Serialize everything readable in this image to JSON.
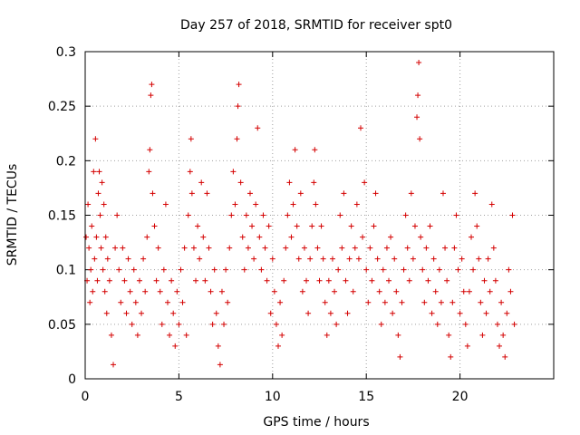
{
  "chart_data": {
    "type": "scatter",
    "title": "Day 257 of 2018, SRMTID for receiver spt0",
    "xlabel": "GPS time / hours",
    "ylabel": "SRMTID / TECUs",
    "xlim": [
      0,
      25
    ],
    "ylim": [
      0,
      0.3
    ],
    "x_ticks": [
      0,
      5,
      10,
      15,
      20
    ],
    "x_tick_labels": [
      "0",
      "5",
      "10",
      "15",
      "20"
    ],
    "y_ticks": [
      0,
      0.05,
      0.1,
      0.15,
      0.2,
      0.25,
      0.3
    ],
    "y_tick_labels": [
      "0",
      "0.05",
      "0.1",
      "0.15",
      "0.2",
      "0.25",
      "0.3"
    ],
    "grid": true,
    "marker": "plus",
    "color": "#d40000",
    "series": [
      {
        "name": "spt0",
        "points": [
          [
            0.05,
            0.13
          ],
          [
            0.1,
            0.09
          ],
          [
            0.15,
            0.16
          ],
          [
            0.2,
            0.12
          ],
          [
            0.25,
            0.07
          ],
          [
            0.3,
            0.1
          ],
          [
            0.35,
            0.14
          ],
          [
            0.4,
            0.08
          ],
          [
            0.45,
            0.19
          ],
          [
            0.5,
            0.11
          ],
          [
            0.55,
            0.22
          ],
          [
            0.6,
            0.13
          ],
          [
            0.65,
            0.09
          ],
          [
            0.7,
            0.17
          ],
          [
            0.75,
            0.19
          ],
          [
            0.8,
            0.15
          ],
          [
            0.85,
            0.12
          ],
          [
            0.9,
            0.18
          ],
          [
            0.95,
            0.1
          ],
          [
            1.0,
            0.16
          ],
          [
            1.05,
            0.08
          ],
          [
            1.1,
            0.13
          ],
          [
            1.15,
            0.06
          ],
          [
            1.2,
            0.11
          ],
          [
            1.3,
            0.09
          ],
          [
            1.4,
            0.04
          ],
          [
            1.5,
            0.013
          ],
          [
            1.6,
            0.12
          ],
          [
            1.7,
            0.15
          ],
          [
            1.8,
            0.1
          ],
          [
            1.9,
            0.07
          ],
          [
            2.0,
            0.12
          ],
          [
            2.1,
            0.09
          ],
          [
            2.2,
            0.06
          ],
          [
            2.3,
            0.11
          ],
          [
            2.4,
            0.08
          ],
          [
            2.5,
            0.05
          ],
          [
            2.6,
            0.1
          ],
          [
            2.7,
            0.07
          ],
          [
            2.8,
            0.04
          ],
          [
            2.9,
            0.09
          ],
          [
            3.0,
            0.06
          ],
          [
            3.1,
            0.11
          ],
          [
            3.2,
            0.08
          ],
          [
            3.3,
            0.13
          ],
          [
            3.4,
            0.19
          ],
          [
            3.45,
            0.21
          ],
          [
            3.5,
            0.26
          ],
          [
            3.55,
            0.27
          ],
          [
            3.6,
            0.17
          ],
          [
            3.7,
            0.14
          ],
          [
            3.8,
            0.09
          ],
          [
            3.9,
            0.12
          ],
          [
            4.0,
            0.08
          ],
          [
            4.1,
            0.05
          ],
          [
            4.2,
            0.1
          ],
          [
            4.3,
            0.16
          ],
          [
            4.4,
            0.07
          ],
          [
            4.5,
            0.04
          ],
          [
            4.6,
            0.09
          ],
          [
            4.7,
            0.06
          ],
          [
            4.8,
            0.03
          ],
          [
            4.9,
            0.08
          ],
          [
            5.0,
            0.05
          ],
          [
            5.1,
            0.1
          ],
          [
            5.2,
            0.07
          ],
          [
            5.3,
            0.12
          ],
          [
            5.4,
            0.04
          ],
          [
            5.5,
            0.15
          ],
          [
            5.6,
            0.19
          ],
          [
            5.65,
            0.22
          ],
          [
            5.7,
            0.17
          ],
          [
            5.8,
            0.12
          ],
          [
            5.9,
            0.09
          ],
          [
            6.0,
            0.14
          ],
          [
            6.1,
            0.11
          ],
          [
            6.2,
            0.18
          ],
          [
            6.3,
            0.13
          ],
          [
            6.4,
            0.09
          ],
          [
            6.5,
            0.17
          ],
          [
            6.6,
            0.12
          ],
          [
            6.7,
            0.08
          ],
          [
            6.8,
            0.05
          ],
          [
            6.9,
            0.1
          ],
          [
            7.0,
            0.06
          ],
          [
            7.1,
            0.03
          ],
          [
            7.2,
            0.013
          ],
          [
            7.3,
            0.08
          ],
          [
            7.4,
            0.05
          ],
          [
            7.5,
            0.1
          ],
          [
            7.6,
            0.07
          ],
          [
            7.7,
            0.12
          ],
          [
            7.8,
            0.15
          ],
          [
            7.9,
            0.19
          ],
          [
            8.0,
            0.16
          ],
          [
            8.1,
            0.22
          ],
          [
            8.15,
            0.25
          ],
          [
            8.2,
            0.27
          ],
          [
            8.3,
            0.18
          ],
          [
            8.4,
            0.13
          ],
          [
            8.5,
            0.1
          ],
          [
            8.6,
            0.15
          ],
          [
            8.7,
            0.12
          ],
          [
            8.8,
            0.17
          ],
          [
            8.9,
            0.14
          ],
          [
            9.0,
            0.11
          ],
          [
            9.1,
            0.16
          ],
          [
            9.2,
            0.23
          ],
          [
            9.3,
            0.13
          ],
          [
            9.4,
            0.1
          ],
          [
            9.5,
            0.15
          ],
          [
            9.6,
            0.12
          ],
          [
            9.7,
            0.09
          ],
          [
            9.8,
            0.14
          ],
          [
            9.9,
            0.06
          ],
          [
            10.0,
            0.11
          ],
          [
            10.1,
            0.08
          ],
          [
            10.2,
            0.05
          ],
          [
            10.3,
            0.03
          ],
          [
            10.4,
            0.07
          ],
          [
            10.5,
            0.04
          ],
          [
            10.6,
            0.09
          ],
          [
            10.7,
            0.12
          ],
          [
            10.8,
            0.15
          ],
          [
            10.9,
            0.18
          ],
          [
            11.0,
            0.13
          ],
          [
            11.1,
            0.16
          ],
          [
            11.2,
            0.21
          ],
          [
            11.3,
            0.14
          ],
          [
            11.4,
            0.11
          ],
          [
            11.5,
            0.17
          ],
          [
            11.6,
            0.08
          ],
          [
            11.7,
            0.12
          ],
          [
            11.8,
            0.09
          ],
          [
            11.9,
            0.06
          ],
          [
            12.0,
            0.11
          ],
          [
            12.1,
            0.14
          ],
          [
            12.2,
            0.18
          ],
          [
            12.25,
            0.21
          ],
          [
            12.3,
            0.16
          ],
          [
            12.4,
            0.12
          ],
          [
            12.5,
            0.09
          ],
          [
            12.6,
            0.14
          ],
          [
            12.7,
            0.11
          ],
          [
            12.8,
            0.07
          ],
          [
            12.9,
            0.04
          ],
          [
            13.0,
            0.09
          ],
          [
            13.1,
            0.06
          ],
          [
            13.2,
            0.11
          ],
          [
            13.3,
            0.08
          ],
          [
            13.4,
            0.05
          ],
          [
            13.5,
            0.1
          ],
          [
            13.6,
            0.15
          ],
          [
            13.7,
            0.12
          ],
          [
            13.8,
            0.17
          ],
          [
            13.9,
            0.09
          ],
          [
            14.0,
            0.06
          ],
          [
            14.1,
            0.11
          ],
          [
            14.2,
            0.14
          ],
          [
            14.3,
            0.08
          ],
          [
            14.4,
            0.12
          ],
          [
            14.5,
            0.16
          ],
          [
            14.6,
            0.11
          ],
          [
            14.7,
            0.23
          ],
          [
            14.8,
            0.13
          ],
          [
            14.9,
            0.18
          ],
          [
            15.0,
            0.1
          ],
          [
            15.1,
            0.07
          ],
          [
            15.2,
            0.12
          ],
          [
            15.3,
            0.09
          ],
          [
            15.4,
            0.14
          ],
          [
            15.5,
            0.17
          ],
          [
            15.6,
            0.11
          ],
          [
            15.7,
            0.08
          ],
          [
            15.8,
            0.05
          ],
          [
            15.9,
            0.1
          ],
          [
            16.0,
            0.07
          ],
          [
            16.1,
            0.12
          ],
          [
            16.2,
            0.09
          ],
          [
            16.3,
            0.13
          ],
          [
            16.4,
            0.06
          ],
          [
            16.5,
            0.11
          ],
          [
            16.6,
            0.08
          ],
          [
            16.7,
            0.04
          ],
          [
            16.8,
            0.02
          ],
          [
            16.9,
            0.07
          ],
          [
            17.0,
            0.1
          ],
          [
            17.1,
            0.15
          ],
          [
            17.2,
            0.12
          ],
          [
            17.3,
            0.09
          ],
          [
            17.4,
            0.17
          ],
          [
            17.5,
            0.11
          ],
          [
            17.6,
            0.14
          ],
          [
            17.7,
            0.24
          ],
          [
            17.75,
            0.26
          ],
          [
            17.8,
            0.29
          ],
          [
            17.85,
            0.22
          ],
          [
            17.9,
            0.13
          ],
          [
            18.0,
            0.1
          ],
          [
            18.1,
            0.07
          ],
          [
            18.2,
            0.12
          ],
          [
            18.3,
            0.09
          ],
          [
            18.4,
            0.14
          ],
          [
            18.5,
            0.06
          ],
          [
            18.6,
            0.11
          ],
          [
            18.7,
            0.08
          ],
          [
            18.8,
            0.05
          ],
          [
            18.9,
            0.1
          ],
          [
            19.0,
            0.07
          ],
          [
            19.1,
            0.17
          ],
          [
            19.2,
            0.12
          ],
          [
            19.3,
            0.09
          ],
          [
            19.4,
            0.04
          ],
          [
            19.5,
            0.02
          ],
          [
            19.6,
            0.07
          ],
          [
            19.7,
            0.12
          ],
          [
            19.8,
            0.15
          ],
          [
            19.9,
            0.1
          ],
          [
            20.0,
            0.06
          ],
          [
            20.1,
            0.11
          ],
          [
            20.2,
            0.08
          ],
          [
            20.3,
            0.05
          ],
          [
            20.4,
            0.03
          ],
          [
            20.5,
            0.08
          ],
          [
            20.6,
            0.13
          ],
          [
            20.7,
            0.1
          ],
          [
            20.8,
            0.17
          ],
          [
            20.9,
            0.14
          ],
          [
            21.0,
            0.11
          ],
          [
            21.1,
            0.07
          ],
          [
            21.2,
            0.04
          ],
          [
            21.3,
            0.09
          ],
          [
            21.4,
            0.06
          ],
          [
            21.5,
            0.11
          ],
          [
            21.6,
            0.08
          ],
          [
            21.7,
            0.16
          ],
          [
            21.8,
            0.12
          ],
          [
            21.9,
            0.09
          ],
          [
            22.0,
            0.05
          ],
          [
            22.1,
            0.03
          ],
          [
            22.2,
            0.07
          ],
          [
            22.3,
            0.04
          ],
          [
            22.4,
            0.02
          ],
          [
            22.5,
            0.06
          ],
          [
            22.6,
            0.1
          ],
          [
            22.7,
            0.08
          ],
          [
            22.8,
            0.15
          ],
          [
            22.9,
            0.05
          ]
        ]
      }
    ]
  }
}
